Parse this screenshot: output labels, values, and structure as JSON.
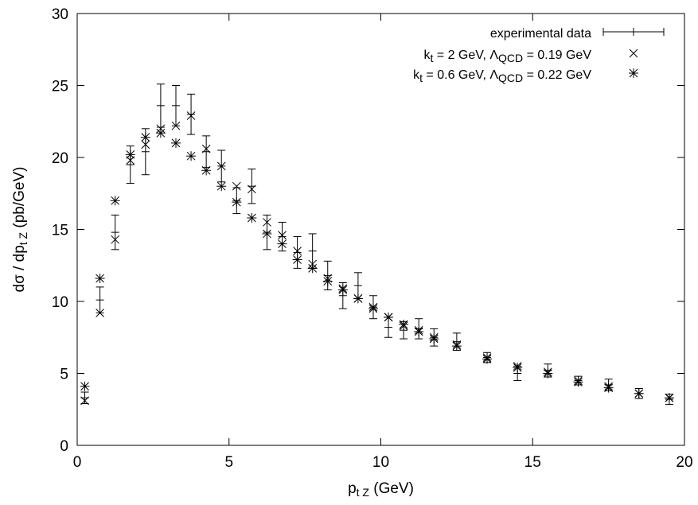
{
  "chart_data": {
    "type": "scatter",
    "xlabel": {
      "main": "p",
      "sub": "t Z",
      "suffix": " (GeV)"
    },
    "ylabel": {
      "prefix": "dσ / dp",
      "sub": "t Z",
      "suffix": " (pb/GeV)"
    },
    "xlim": [
      0,
      20
    ],
    "ylim": [
      0,
      30
    ],
    "xticks": [
      0,
      5,
      10,
      15,
      20
    ],
    "yticks": [
      0,
      5,
      10,
      15,
      20,
      25,
      30
    ],
    "grid": false,
    "legend_position": "top-right",
    "legend": [
      {
        "parts": [
          {
            "t": "experimental data"
          }
        ]
      },
      {
        "parts": [
          {
            "t": "k"
          },
          {
            "t": "t",
            "sub": true
          },
          {
            "t": " = 2 GeV, Λ"
          },
          {
            "t": "QCD",
            "sub": true
          },
          {
            "t": " = 0.19 GeV"
          }
        ]
      },
      {
        "parts": [
          {
            "t": "k"
          },
          {
            "t": "t",
            "sub": true
          },
          {
            "t": " = 0.6 GeV, Λ"
          },
          {
            "t": "QCD",
            "sub": true
          },
          {
            "t": " = 0.22 GeV"
          }
        ]
      }
    ],
    "series": [
      {
        "marker": "errorbar",
        "x": [
          0.25,
          0.75,
          1.25,
          1.75,
          2.25,
          2.75,
          3.25,
          3.75,
          4.25,
          4.75,
          5.25,
          5.75,
          6.25,
          6.75,
          7.25,
          7.75,
          8.25,
          8.75,
          9.25,
          9.75,
          10.25,
          10.75,
          11.25,
          11.75,
          12.5,
          13.5,
          14.5,
          15.5,
          16.5,
          17.5,
          18.5,
          19.5
        ],
        "y": [
          3.3,
          10.1,
          14.8,
          19.5,
          20.4,
          23.6,
          23.6,
          23.0,
          20.4,
          19.4,
          17.0,
          18.0,
          14.8,
          14.5,
          13.4,
          13.5,
          11.8,
          10.4,
          11.1,
          9.6,
          8.2,
          8.0,
          8.1,
          7.5,
          7.2,
          6.1,
          5.0,
          5.2,
          4.5,
          4.2,
          3.6,
          3.2
        ],
        "yerr": [
          0.4,
          0.9,
          1.2,
          1.3,
          1.6,
          1.5,
          1.4,
          1.4,
          1.1,
          1.1,
          0.9,
          1.2,
          1.2,
          1.0,
          1.1,
          1.2,
          1.0,
          0.9,
          0.9,
          0.8,
          0.7,
          0.6,
          0.7,
          0.6,
          0.6,
          0.35,
          0.5,
          0.45,
          0.3,
          0.4,
          0.35,
          0.35
        ]
      },
      {
        "marker": "cross",
        "x": [
          0.25,
          0.75,
          1.25,
          1.75,
          2.25,
          2.75,
          3.25,
          3.75,
          4.25,
          4.75,
          5.25,
          5.75,
          6.25,
          6.75,
          7.25,
          7.75,
          8.25,
          8.75,
          9.25,
          9.75,
          10.25,
          10.75,
          11.25,
          11.75,
          12.5,
          13.5,
          14.5,
          15.5,
          16.5,
          17.5,
          18.5,
          19.5
        ],
        "y": [
          3.1,
          9.2,
          14.3,
          19.8,
          20.9,
          22.0,
          22.2,
          22.9,
          20.6,
          19.4,
          18.0,
          17.8,
          15.5,
          14.6,
          13.5,
          12.6,
          11.6,
          10.9,
          10.2,
          9.6,
          8.9,
          8.3,
          8.0,
          7.5,
          7.0,
          6.1,
          5.5,
          5.1,
          4.5,
          4.1,
          3.6,
          3.3
        ]
      },
      {
        "marker": "star",
        "x": [
          0.25,
          0.75,
          1.25,
          1.75,
          2.25,
          2.75,
          3.25,
          3.75,
          4.25,
          4.75,
          5.25,
          5.75,
          6.25,
          6.75,
          7.25,
          7.75,
          8.25,
          8.75,
          9.25,
          9.75,
          10.25,
          10.75,
          11.25,
          11.75,
          12.5,
          13.5,
          14.5,
          15.5,
          16.5,
          17.5,
          18.5,
          19.5
        ],
        "y": [
          4.1,
          11.6,
          17.0,
          20.2,
          21.4,
          21.7,
          21.0,
          20.1,
          19.1,
          18.0,
          16.9,
          15.8,
          14.7,
          14.0,
          12.9,
          12.3,
          11.4,
          10.8,
          10.2,
          9.5,
          8.9,
          8.4,
          7.9,
          7.4,
          6.9,
          6.0,
          5.4,
          5.0,
          4.4,
          4.0,
          3.6,
          3.3
        ]
      }
    ]
  }
}
